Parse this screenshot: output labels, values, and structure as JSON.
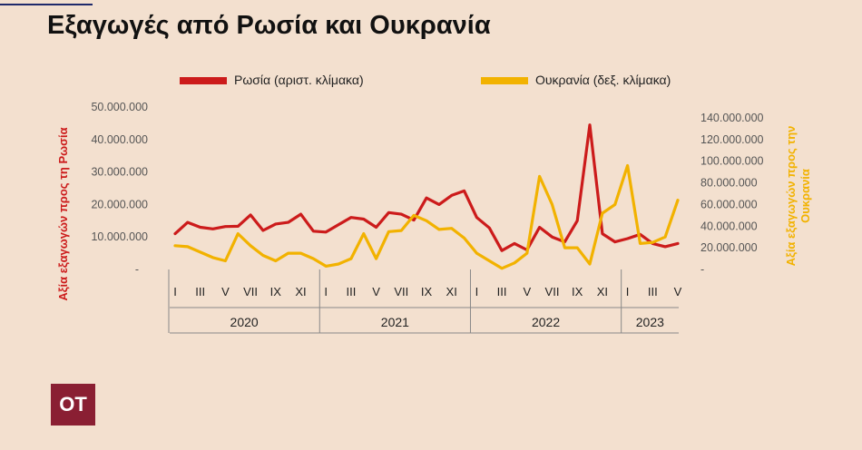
{
  "header": {
    "title": "Εξαγωγές από Ρωσία και Ουκρανία"
  },
  "logo": {
    "text": "OT"
  },
  "chart_data": {
    "type": "line",
    "legend": {
      "placement": "top"
    },
    "ylabel_left": "Αξία εξαγωγών προς τη Ρωσία",
    "ylabel_right": "Αξία εξαγωγών προς την Ουκρανία",
    "y_left": {
      "ticks": [
        "-",
        "10.000.000",
        "20.000.000",
        "30.000.000",
        "40.000.000",
        "50.000.000"
      ],
      "lim": [
        0,
        50000000
      ]
    },
    "y_right": {
      "ticks": [
        "-",
        "20.000.000",
        "40.000.000",
        "60.000.000",
        "80.000.000",
        "100.000.000",
        "120.000.000",
        "140.000.000"
      ],
      "lim": [
        0,
        140000000
      ]
    },
    "x_month_labels": [
      "I",
      "III",
      "V",
      "VII",
      "IX",
      "XI",
      "I",
      "III",
      "V",
      "VII",
      "IX",
      "XI",
      "I",
      "III",
      "V",
      "VII",
      "IX",
      "XI",
      "I",
      "III",
      "V"
    ],
    "x_year_labels": [
      "2020",
      "2021",
      "2022",
      "2023"
    ],
    "year_month_counts": [
      12,
      12,
      12,
      5
    ],
    "series": [
      {
        "name": "Ρωσία (αριστ. κλίμακα)",
        "color": "#cc1b1b",
        "axis": "left",
        "values": [
          11000000,
          14500000,
          13000000,
          12500000,
          13200000,
          13300000,
          16800000,
          12000000,
          14000000,
          14500000,
          17000000,
          11800000,
          11500000,
          13800000,
          16000000,
          15500000,
          13000000,
          17500000,
          17000000,
          15200000,
          22000000,
          20000000,
          22800000,
          24200000,
          16000000,
          12800000,
          5800000,
          8000000,
          6000000,
          13000000,
          10000000,
          8500000,
          15000000,
          44500000,
          11000000,
          8500000,
          9500000,
          10800000,
          8000000,
          7000000,
          8000000
        ]
      },
      {
        "name": "Ουκρανία (δεξ. κλίμακα)",
        "color": "#f2b200",
        "axis": "right",
        "values": [
          22000000,
          21000000,
          16000000,
          11000000,
          8000000,
          33000000,
          22000000,
          13000000,
          8000000,
          15000000,
          15000000,
          10000000,
          3000000,
          5000000,
          10000000,
          33000000,
          10000000,
          35000000,
          36000000,
          50000000,
          45000000,
          37000000,
          38000000,
          29000000,
          15000000,
          8000000,
          1000000,
          6000000,
          15000000,
          86000000,
          60000000,
          20000000,
          20000000,
          5000000,
          52000000,
          60000000,
          96000000,
          24000000,
          25000000,
          30000000,
          64000000
        ]
      }
    ]
  }
}
